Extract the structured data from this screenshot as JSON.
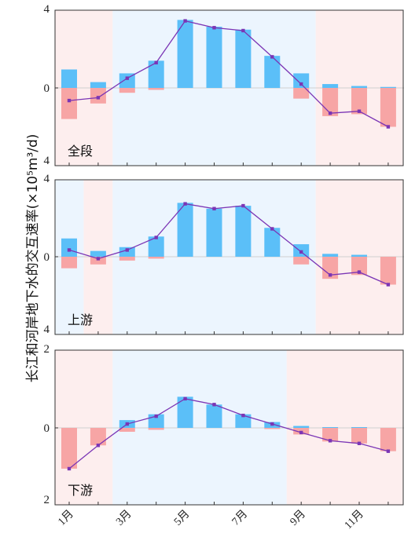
{
  "y_axis_label": "长江和河岸地下水的交互速率(×10⁵m³/d)",
  "colors": {
    "positive_bar": "#5bbff8",
    "negative_bar": "#f7a5a5",
    "line": "#7b35b5",
    "shade_blue": "#ecf5fe",
    "shade_pink": "#fdeeee"
  },
  "chart_data": [
    {
      "type": "bar",
      "panel_label": "全段",
      "ylim": [
        -4,
        4
      ],
      "yticks": [
        "4",
        "0",
        "4"
      ],
      "x": [
        1,
        2,
        3,
        4,
        5,
        6,
        7,
        8,
        9,
        10,
        11,
        12
      ],
      "xtick_labels": [
        "1月",
        "3月",
        "5月",
        "7月",
        "9月",
        "11月"
      ],
      "shading": [
        {
          "from": 0.5,
          "to": 2.5,
          "color": "pink"
        },
        {
          "from": 2.5,
          "to": 9.5,
          "color": "blue"
        },
        {
          "from": 9.5,
          "to": 12.5,
          "color": "pink"
        }
      ],
      "series": [
        {
          "role": "positive_bars",
          "values": [
            0.95,
            0.3,
            0.75,
            1.4,
            3.5,
            3.15,
            3.0,
            1.65,
            0.75,
            0.2,
            0.1,
            0.05
          ]
        },
        {
          "role": "negative_bars",
          "values": [
            -1.6,
            -0.8,
            -0.25,
            -0.1,
            0,
            0,
            0,
            0,
            -0.55,
            -1.45,
            -1.35,
            -2.0
          ]
        },
        {
          "role": "net_line",
          "values": [
            -0.65,
            -0.5,
            0.5,
            1.3,
            3.45,
            3.1,
            2.95,
            1.6,
            0.2,
            -1.3,
            -1.2,
            -2.0
          ]
        }
      ]
    },
    {
      "type": "bar",
      "panel_label": "上游",
      "ylim": [
        -4,
        4
      ],
      "yticks": [
        "4",
        "0",
        "4"
      ],
      "x": [
        1,
        2,
        3,
        4,
        5,
        6,
        7,
        8,
        9,
        10,
        11,
        12
      ],
      "xtick_labels": [
        "1月",
        "3月",
        "5月",
        "7月",
        "9月",
        "11月"
      ],
      "shading": [
        {
          "from": 0.5,
          "to": 1.5,
          "color": "blue"
        },
        {
          "from": 1.5,
          "to": 2.5,
          "color": "pink"
        },
        {
          "from": 2.5,
          "to": 9.5,
          "color": "blue"
        },
        {
          "from": 9.5,
          "to": 12.5,
          "color": "pink"
        }
      ],
      "series": [
        {
          "role": "positive_bars",
          "values": [
            0.95,
            0.3,
            0.5,
            1.05,
            2.8,
            2.5,
            2.65,
            1.5,
            0.65,
            0.15,
            0.1,
            0.0
          ]
        },
        {
          "role": "negative_bars",
          "values": [
            -0.6,
            -0.4,
            -0.2,
            -0.1,
            0,
            0,
            0,
            0,
            -0.4,
            -1.15,
            -0.95,
            -1.45
          ]
        },
        {
          "role": "net_line",
          "values": [
            0.35,
            -0.1,
            0.35,
            1.0,
            2.75,
            2.5,
            2.65,
            1.45,
            0.25,
            -0.95,
            -0.8,
            -1.45
          ]
        }
      ]
    },
    {
      "type": "bar",
      "panel_label": "下游",
      "ylim": [
        -2,
        2
      ],
      "yticks": [
        "2",
        "0",
        "2"
      ],
      "x": [
        1,
        2,
        3,
        4,
        5,
        6,
        7,
        8,
        9,
        10,
        11,
        12
      ],
      "xtick_labels": [
        "1月",
        "3月",
        "5月",
        "7月",
        "9月",
        "11月"
      ],
      "shading": [
        {
          "from": 0.5,
          "to": 2.5,
          "color": "pink"
        },
        {
          "from": 2.5,
          "to": 8.5,
          "color": "blue"
        },
        {
          "from": 8.5,
          "to": 12.5,
          "color": "pink"
        }
      ],
      "series": [
        {
          "role": "positive_bars",
          "values": [
            0.0,
            0.0,
            0.2,
            0.35,
            0.8,
            0.6,
            0.35,
            0.15,
            0.05,
            0.02,
            0.02,
            0.0
          ]
        },
        {
          "role": "negative_bars",
          "values": [
            -1.05,
            -0.45,
            -0.1,
            -0.05,
            0,
            0,
            0,
            -0.03,
            -0.17,
            -0.35,
            -0.4,
            -0.6
          ]
        },
        {
          "role": "net_line",
          "values": [
            -1.05,
            -0.45,
            0.1,
            0.3,
            0.75,
            0.6,
            0.32,
            0.1,
            -0.12,
            -0.33,
            -0.4,
            -0.6
          ]
        }
      ]
    }
  ]
}
